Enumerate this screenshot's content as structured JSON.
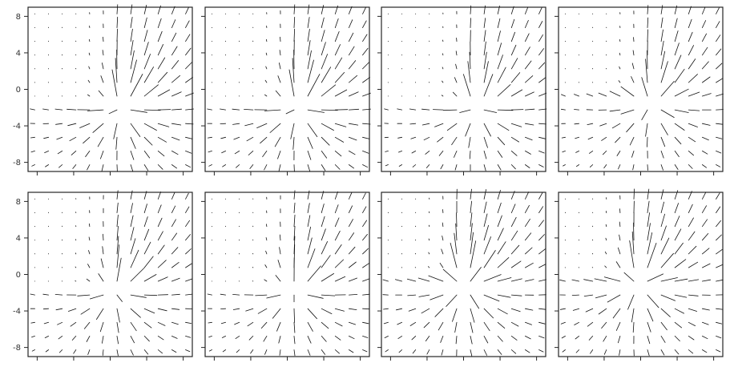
{
  "chart_data": {
    "type": "quiver",
    "layout": {
      "rows": 2,
      "cols": 4
    },
    "shared_axes": true,
    "xlim": [
      -9,
      9
    ],
    "ylim": [
      -9,
      9
    ],
    "ytick_values": [
      8,
      4,
      0,
      -4,
      -8
    ],
    "ytick_labels": [
      "8",
      "4",
      "0",
      "-4",
      "-8"
    ],
    "xtick_values": [
      -8,
      -4,
      0,
      4,
      8
    ],
    "xtick_labels": [
      "",
      "",
      "",
      "",
      ""
    ],
    "grid_step": 1.5,
    "grid": false,
    "title": "",
    "xlabel": "",
    "ylabel": "",
    "panels": [
      {
        "source": [
          1.2,
          -2.0
        ],
        "strength": 9,
        "spread": [
          -0.6,
          0.8
        ]
      },
      {
        "source": [
          1.2,
          -2.0
        ],
        "strength": 9,
        "spread": [
          -0.8,
          0.9
        ]
      },
      {
        "source": [
          1.5,
          -2.0
        ],
        "strength": 8,
        "spread": [
          -0.7,
          0.8
        ]
      },
      {
        "source": [
          1.2,
          -1.5
        ],
        "strength": 8,
        "spread": [
          -0.8,
          0.8
        ]
      },
      {
        "source": [
          0.5,
          -1.8
        ],
        "strength": 8,
        "spread": [
          -0.5,
          0.7
        ]
      },
      {
        "source": [
          0.8,
          -1.8
        ],
        "strength": 8,
        "spread": [
          -0.6,
          0.7
        ]
      },
      {
        "source": [
          0.2,
          -1.2
        ],
        "strength": 9,
        "spread": [
          -0.7,
          0.6
        ]
      },
      {
        "source": [
          -0.2,
          -1.0
        ],
        "strength": 9,
        "spread": [
          -0.8,
          0.7
        ]
      }
    ]
  }
}
